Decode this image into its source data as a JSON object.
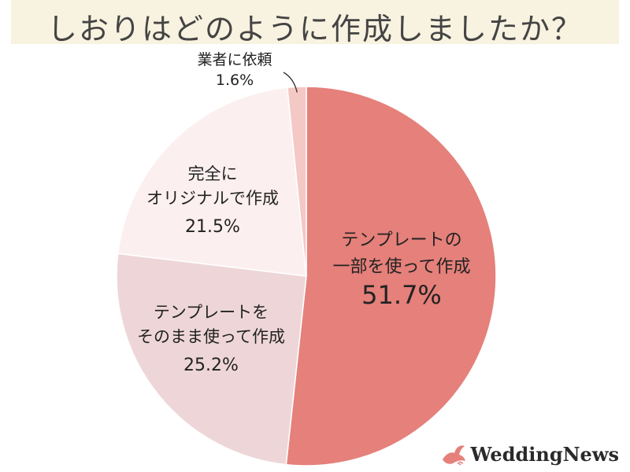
{
  "title": "しおりはどのように作成しましたか？",
  "chart_data": {
    "type": "pie",
    "start_angle_deg": 0,
    "direction": "clockwise",
    "slices": [
      {
        "lines": [
          "テンプレートの",
          "一部を使って作成"
        ],
        "value": 51.7,
        "value_label": "51.7%",
        "color": "#e5807a"
      },
      {
        "lines": [
          "テンプレートを",
          "そのまま使って作成"
        ],
        "value": 25.2,
        "value_label": "25.2%",
        "color": "#eed6d8"
      },
      {
        "lines": [
          "完全に",
          "オリジナルで作成"
        ],
        "value": 21.5,
        "value_label": "21.5%",
        "color": "#fcefef"
      },
      {
        "lines": [
          "業者に依頼"
        ],
        "value": 1.6,
        "value_label": "1.6%",
        "color": "#f4c8c4"
      }
    ]
  },
  "logo": {
    "text": "WeddingNews",
    "icon": "dove-icon",
    "color": "#e5807a"
  }
}
